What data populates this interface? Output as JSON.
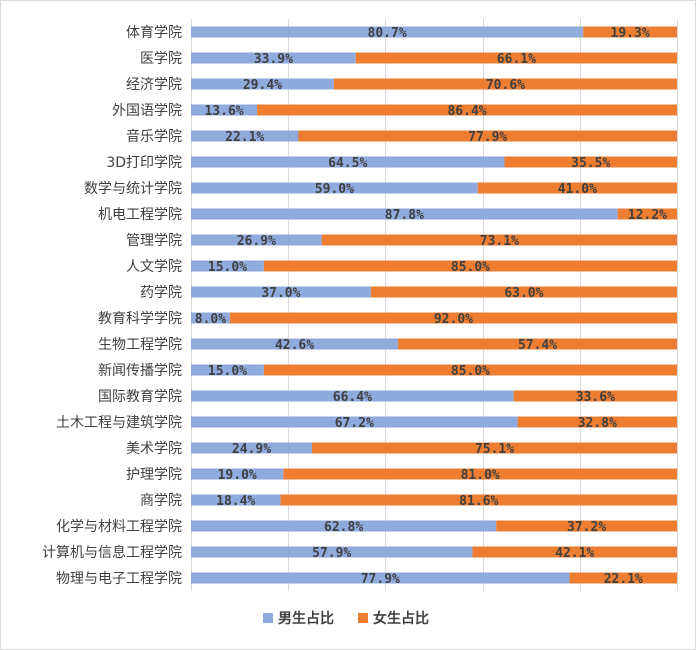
{
  "chart_data": {
    "type": "bar",
    "orientation": "horizontal",
    "stacked": "100%",
    "categories": [
      "体育学院",
      "医学院",
      "经济学院",
      "外国语学院",
      "音乐学院",
      "3D打印学院",
      "数学与统计学院",
      "机电工程学院",
      "管理学院",
      "人文学院",
      "药学院",
      "教育科学学院",
      "生物工程学院",
      "新闻传播学院",
      "国际教育学院",
      "土木工程与建筑学院",
      "美术学院",
      "护理学院",
      "商学院",
      "化学与材料工程学院",
      "计算机与信息工程学院",
      "物理与电子工程学院"
    ],
    "series": [
      {
        "name": "男生占比",
        "color": "#8faadc",
        "values": [
          80.7,
          33.9,
          29.4,
          13.6,
          22.1,
          64.5,
          59.0,
          87.8,
          26.9,
          15.0,
          37.0,
          8.0,
          42.6,
          15.0,
          66.4,
          67.2,
          24.9,
          19.0,
          18.4,
          62.8,
          57.9,
          77.9
        ]
      },
      {
        "name": "女生占比",
        "color": "#ed7d31",
        "values": [
          19.3,
          66.1,
          70.6,
          86.4,
          77.9,
          35.5,
          41.0,
          12.2,
          73.1,
          85.0,
          63.0,
          92.0,
          57.4,
          85.0,
          33.6,
          32.8,
          75.1,
          81.0,
          81.6,
          37.2,
          42.1,
          22.1
        ]
      }
    ],
    "xlim": [
      0,
      100
    ],
    "grid": true,
    "legend": "bottom",
    "value_format": "percent_1dp"
  }
}
